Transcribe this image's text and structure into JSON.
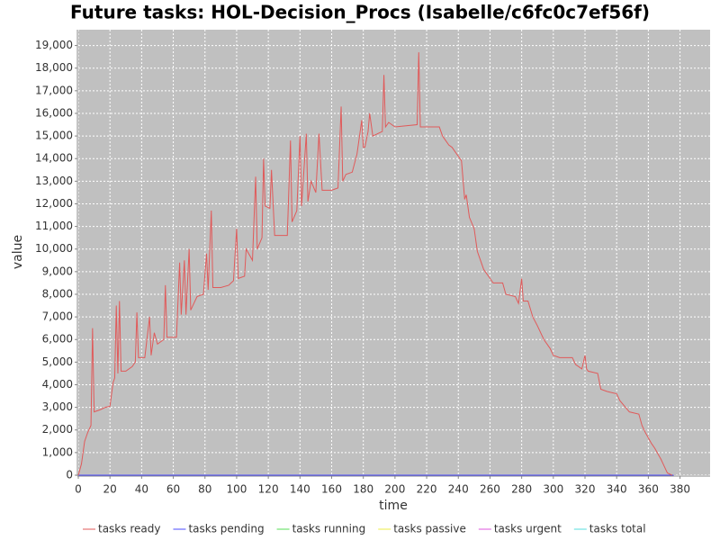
{
  "chart_data": {
    "type": "line",
    "title": "Future tasks: HOL-Decision_Procs (Isabelle/c6fc0c7ef56f)",
    "x_label": "time",
    "y_label": "value",
    "xlim": [
      0,
      399
    ],
    "ylim": [
      0,
      19700
    ],
    "xticks": [
      0,
      20,
      40,
      60,
      80,
      100,
      120,
      140,
      160,
      180,
      200,
      220,
      240,
      260,
      280,
      300,
      320,
      340,
      360,
      380
    ],
    "yticks": [
      0,
      {
        "value": 1000,
        "label": "1,000"
      },
      {
        "value": 2000,
        "label": "2,000"
      },
      {
        "value": 3000,
        "label": "3,000"
      },
      {
        "value": 4000,
        "label": "4,000"
      },
      {
        "value": 5000,
        "label": "5,000"
      },
      {
        "value": 6000,
        "label": "6,000"
      },
      {
        "value": 7000,
        "label": "7,000"
      },
      {
        "value": 8000,
        "label": "8,000"
      },
      {
        "value": 9000,
        "label": "9,000"
      },
      {
        "value": 10000,
        "label": "10,000"
      },
      {
        "value": 11000,
        "label": "11,000"
      },
      {
        "value": 12000,
        "label": "12,000"
      },
      {
        "value": 13000,
        "label": "13,000"
      },
      {
        "value": 14000,
        "label": "14,000"
      },
      {
        "value": 15000,
        "label": "15,000"
      },
      {
        "value": 16000,
        "label": "16,000"
      },
      {
        "value": 17000,
        "label": "17,000"
      },
      {
        "value": 18000,
        "label": "18,000"
      },
      {
        "value": 19000,
        "label": "19,000"
      }
    ],
    "grid": true,
    "legend": "bottom",
    "series": [
      {
        "name": "tasks ready",
        "color": "#e05a5a",
        "x": [
          0,
          2,
          4,
          6,
          8,
          9,
          10,
          14,
          17,
          20,
          22,
          23,
          24,
          25,
          26,
          27,
          30,
          34,
          36,
          37,
          38,
          42,
          45,
          46,
          48,
          50,
          54,
          55,
          56,
          62,
          64,
          65,
          67,
          68,
          70,
          71,
          75,
          79,
          81,
          82,
          84,
          85,
          90,
          95,
          98,
          100,
          101,
          105,
          106,
          110,
          112,
          113,
          116,
          117,
          118,
          121,
          122,
          124,
          132,
          134,
          135,
          138,
          140,
          141,
          144,
          145,
          147,
          150,
          152,
          154,
          160,
          164,
          166,
          167,
          169,
          173,
          176,
          179,
          180,
          181,
          183,
          184,
          186,
          192,
          193,
          194,
          196,
          200,
          214,
          215,
          216,
          228,
          230,
          234,
          236,
          240,
          242,
          244,
          245,
          247,
          250,
          252,
          256,
          260,
          262,
          268,
          270,
          276,
          278,
          280,
          281,
          284,
          287,
          290,
          294,
          298,
          300,
          304,
          312,
          314,
          318,
          320,
          321,
          322,
          328,
          330,
          334,
          340,
          342,
          348,
          354,
          356,
          358,
          362,
          364,
          368,
          370,
          372,
          375
        ],
        "values": [
          0,
          500,
          1500,
          1900,
          2200,
          6500,
          2800,
          2900,
          3000,
          3050,
          4100,
          4300,
          7500,
          4500,
          7700,
          4600,
          4600,
          4800,
          5000,
          7200,
          5200,
          5200,
          7000,
          5300,
          6300,
          5800,
          6000,
          8400,
          6100,
          6100,
          9400,
          7100,
          9500,
          7100,
          10000,
          7300,
          7900,
          8000,
          9800,
          8200,
          11700,
          8300,
          8300,
          8400,
          8600,
          10900,
          8700,
          8800,
          10000,
          9500,
          13200,
          10000,
          10500,
          14000,
          11900,
          11800,
          13500,
          10600,
          10600,
          14800,
          11200,
          11700,
          15000,
          11900,
          15100,
          12100,
          13000,
          12500,
          15100,
          12600,
          12600,
          12700,
          16300,
          13000,
          13300,
          13400,
          14200,
          15700,
          14500,
          14500,
          15200,
          16000,
          15000,
          15200,
          17700,
          15400,
          15600,
          15400,
          15500,
          18700,
          15400,
          15400,
          15000,
          14600,
          14500,
          14100,
          13900,
          12200,
          12400,
          11400,
          10900,
          9900,
          9100,
          8700,
          8500,
          8500,
          8000,
          7900,
          7600,
          8700,
          7700,
          7700,
          7000,
          6600,
          6000,
          5600,
          5300,
          5200,
          5200,
          4900,
          4700,
          5300,
          4700,
          4600,
          4500,
          3800,
          3700,
          3600,
          3300,
          2800,
          2700,
          2200,
          1900,
          1400,
          1200,
          700,
          400,
          100,
          0
        ]
      },
      {
        "name": "tasks pending",
        "color": "#4a4aff",
        "x": [
          0,
          376
        ],
        "values": [
          0,
          0
        ]
      },
      {
        "name": "tasks running",
        "color": "#55dd55",
        "x": [
          0,
          376
        ],
        "values": [
          0,
          0
        ]
      },
      {
        "name": "tasks passive",
        "color": "#eeee44",
        "x": [
          0,
          376
        ],
        "values": [
          0,
          0
        ]
      },
      {
        "name": "tasks urgent",
        "color": "#dd55dd",
        "x": [
          0,
          376
        ],
        "values": [
          0,
          0
        ]
      },
      {
        "name": "tasks total",
        "color": "#55dddd",
        "x": [
          0,
          376
        ],
        "values": [
          0,
          0
        ]
      }
    ]
  }
}
